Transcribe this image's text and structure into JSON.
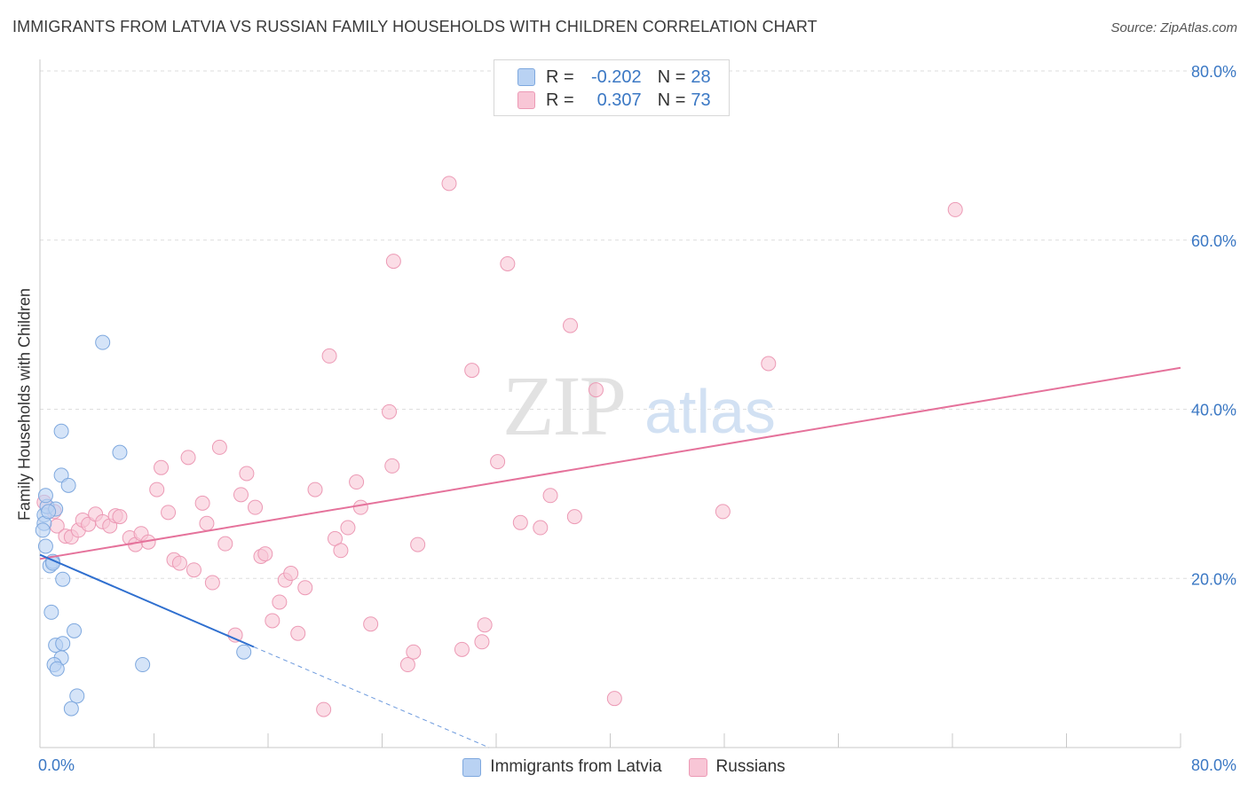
{
  "header": {
    "title": "IMMIGRANTS FROM LATVIA VS RUSSIAN FAMILY HOUSEHOLDS WITH CHILDREN CORRELATION CHART",
    "source": "Source: ZipAtlas.com"
  },
  "watermark": {
    "zip": "ZIP",
    "atlas": "atlas"
  },
  "legend_top": [
    {
      "r_label": "R =",
      "r_value": "-0.202",
      "n_label": "N =",
      "n_value": "28"
    },
    {
      "r_label": "R =",
      "r_value": "0.307",
      "n_label": "N =",
      "n_value": "73"
    }
  ],
  "chart_data": {
    "type": "scatter",
    "title": "IMMIGRANTS FROM LATVIA VS RUSSIAN FAMILY HOUSEHOLDS WITH CHILDREN CORRELATION CHART",
    "xlabel": "",
    "ylabel": "Family Households with Children",
    "xlim": [
      0,
      80
    ],
    "ylim": [
      0,
      80
    ],
    "x_tick_labels": [
      "0.0%",
      "80.0%"
    ],
    "y_tick_labels": [
      "20.0%",
      "40.0%",
      "60.0%",
      "80.0%"
    ],
    "y_ticks": [
      20,
      40,
      60,
      80
    ],
    "grid": true,
    "legend_position": "bottom",
    "colors": {
      "latvia_fill": "#b9d2f3",
      "latvia_stroke": "#7ea8de",
      "latvia_line": "#2f6fcf",
      "russian_fill": "#f8c6d6",
      "russian_stroke": "#ec9ab5",
      "russian_line": "#e5729b",
      "tick_label": "#3b78c4"
    },
    "series": [
      {
        "name": "Immigrants from Latvia",
        "points": [
          [
            0.3,
            27.5
          ],
          [
            0.5,
            28.5
          ],
          [
            0.4,
            29.8
          ],
          [
            0.3,
            26.5
          ],
          [
            0.4,
            23.8
          ],
          [
            0.7,
            21.5
          ],
          [
            0.9,
            22.0
          ],
          [
            1.1,
            28.2
          ],
          [
            1.5,
            32.2
          ],
          [
            1.5,
            37.4
          ],
          [
            2.0,
            31.0
          ],
          [
            1.6,
            19.9
          ],
          [
            0.8,
            16.0
          ],
          [
            1.1,
            12.1
          ],
          [
            2.4,
            13.8
          ],
          [
            1.6,
            12.3
          ],
          [
            1.5,
            10.6
          ],
          [
            1.0,
            9.8
          ],
          [
            1.2,
            9.3
          ],
          [
            2.6,
            6.1
          ],
          [
            2.2,
            4.6
          ],
          [
            4.4,
            47.9
          ],
          [
            5.6,
            34.9
          ],
          [
            7.2,
            9.8
          ],
          [
            14.3,
            11.3
          ],
          [
            0.2,
            25.7
          ],
          [
            0.6,
            27.9
          ],
          [
            0.9,
            21.8
          ]
        ],
        "trend": {
          "x": [
            0.0,
            15.0
          ],
          "y": [
            22.8,
            11.9
          ]
        },
        "trend_extension": {
          "x": [
            15.0,
            31.5
          ],
          "y": [
            11.9,
            0.0
          ]
        }
      },
      {
        "name": "Russians",
        "points": [
          [
            0.3,
            29.0
          ],
          [
            1.0,
            27.9
          ],
          [
            1.2,
            26.2
          ],
          [
            1.8,
            25.0
          ],
          [
            2.2,
            24.9
          ],
          [
            2.7,
            25.7
          ],
          [
            3.0,
            26.9
          ],
          [
            3.4,
            26.4
          ],
          [
            3.9,
            27.6
          ],
          [
            4.4,
            26.7
          ],
          [
            4.9,
            26.2
          ],
          [
            5.3,
            27.4
          ],
          [
            5.6,
            27.3
          ],
          [
            6.3,
            24.8
          ],
          [
            6.7,
            24.0
          ],
          [
            7.1,
            25.3
          ],
          [
            7.6,
            24.3
          ],
          [
            8.2,
            30.5
          ],
          [
            8.5,
            33.1
          ],
          [
            9.0,
            27.8
          ],
          [
            9.4,
            22.2
          ],
          [
            9.8,
            21.8
          ],
          [
            10.4,
            34.3
          ],
          [
            10.8,
            21.0
          ],
          [
            11.4,
            28.9
          ],
          [
            11.7,
            26.5
          ],
          [
            12.1,
            19.5
          ],
          [
            12.6,
            35.5
          ],
          [
            13.0,
            24.1
          ],
          [
            13.7,
            13.3
          ],
          [
            14.1,
            29.9
          ],
          [
            14.5,
            32.4
          ],
          [
            15.1,
            28.4
          ],
          [
            15.5,
            22.6
          ],
          [
            15.8,
            22.9
          ],
          [
            16.3,
            15.0
          ],
          [
            16.8,
            17.2
          ],
          [
            17.2,
            19.8
          ],
          [
            17.6,
            20.6
          ],
          [
            18.1,
            13.5
          ],
          [
            18.6,
            18.9
          ],
          [
            19.3,
            30.5
          ],
          [
            19.9,
            4.5
          ],
          [
            20.3,
            46.3
          ],
          [
            20.7,
            24.7
          ],
          [
            21.1,
            23.3
          ],
          [
            21.6,
            26.0
          ],
          [
            22.2,
            31.4
          ],
          [
            22.5,
            28.4
          ],
          [
            23.2,
            14.6
          ],
          [
            24.5,
            39.7
          ],
          [
            24.7,
            33.3
          ],
          [
            24.8,
            57.5
          ],
          [
            25.8,
            9.8
          ],
          [
            26.2,
            11.3
          ],
          [
            26.5,
            24.0
          ],
          [
            28.7,
            66.7
          ],
          [
            29.6,
            11.6
          ],
          [
            30.3,
            44.6
          ],
          [
            31.0,
            12.5
          ],
          [
            31.2,
            14.5
          ],
          [
            32.1,
            33.8
          ],
          [
            32.8,
            57.2
          ],
          [
            33.7,
            26.6
          ],
          [
            35.1,
            26.0
          ],
          [
            35.8,
            29.8
          ],
          [
            37.2,
            49.9
          ],
          [
            37.5,
            27.3
          ],
          [
            39.0,
            42.3
          ],
          [
            40.3,
            5.8
          ],
          [
            47.9,
            27.9
          ],
          [
            51.1,
            45.4
          ],
          [
            64.2,
            63.6
          ]
        ],
        "trend": {
          "x": [
            0.0,
            80.0
          ],
          "y": [
            22.3,
            44.9
          ]
        }
      }
    ]
  },
  "legend_bottom": [
    {
      "label": "Immigrants from Latvia"
    },
    {
      "label": "Russians"
    }
  ]
}
